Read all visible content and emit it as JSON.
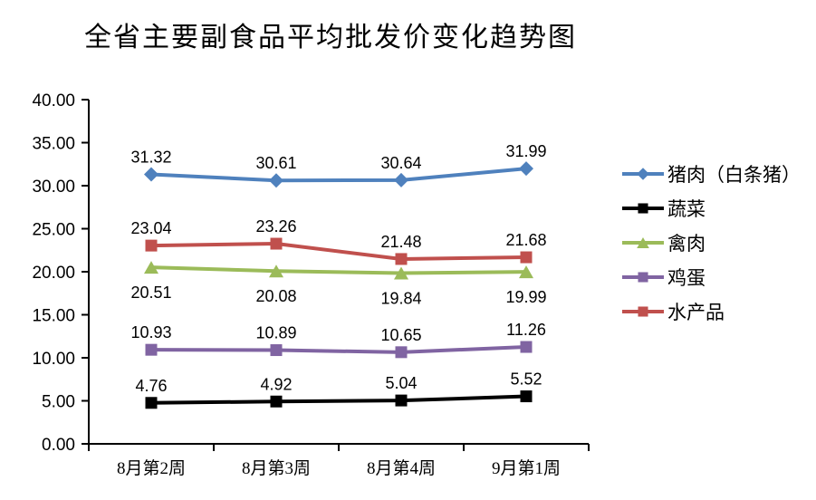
{
  "chart_data": {
    "type": "line",
    "title": "全省主要副食品平均批发价变化趋势图",
    "categories": [
      "8月第2周",
      "8月第3周",
      "8月第4周",
      "9月第1周"
    ],
    "series": [
      {
        "id": "pork",
        "name": "猪肉（白条猪）",
        "color": "#4F81BD",
        "marker": "diamond",
        "label_position": "above",
        "values": [
          31.32,
          30.61,
          30.64,
          31.99
        ]
      },
      {
        "id": "vegetables",
        "name": "蔬菜",
        "color": "#000000",
        "marker": "square",
        "label_position": "above",
        "values": [
          4.76,
          4.92,
          5.04,
          5.52
        ]
      },
      {
        "id": "poultry",
        "name": "禽肉",
        "color": "#9BBB59",
        "marker": "triangle",
        "label_position": "below",
        "values": [
          20.51,
          20.08,
          19.84,
          19.99
        ]
      },
      {
        "id": "eggs",
        "name": "鸡蛋",
        "color": "#8064A2",
        "marker": "square",
        "label_position": "above",
        "values": [
          10.93,
          10.89,
          10.65,
          11.26
        ]
      },
      {
        "id": "aquatic-products",
        "name": "水产品",
        "color": "#C0504D",
        "marker": "square",
        "label_position": "above",
        "values": [
          23.04,
          23.26,
          21.48,
          21.68
        ]
      }
    ],
    "y_axis": {
      "min": 0,
      "max": 40,
      "step": 5,
      "tick_labels": [
        "0.00",
        "5.00",
        "10.00",
        "15.00",
        "20.00",
        "25.00",
        "30.00",
        "35.00",
        "40.00"
      ]
    },
    "x_axis": {
      "tick_labels": [
        "8月第2周",
        "8月第3周",
        "8月第4周",
        "9月第1周"
      ]
    },
    "legend_position": "right",
    "grid": false,
    "axis_color": "#000000",
    "background_color": "#FFFFFF"
  }
}
